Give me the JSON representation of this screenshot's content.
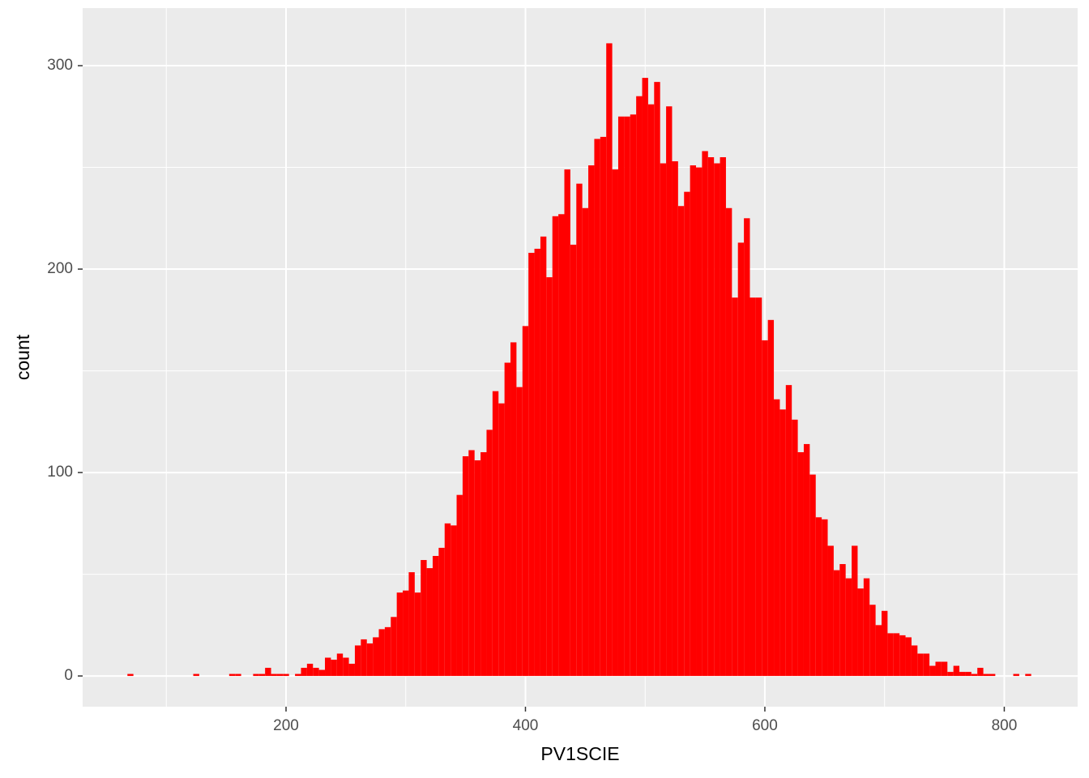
{
  "chart_data": {
    "type": "histogram",
    "x_label": "PV1SCIE",
    "y_label": "count",
    "color": "#ff0000",
    "bins": [
      67.5,
      72.5,
      77.5,
      82.5,
      87.5,
      92.5,
      97.5,
      102.5,
      107.5,
      112.5,
      117.5,
      122.5,
      127.5,
      132.5,
      137.5,
      142.5,
      147.5,
      152.5,
      157.5,
      162.5,
      167.5,
      172.5,
      177.5,
      182.5,
      187.5,
      192.5,
      197.5,
      202.5,
      207.5,
      212.5,
      217.5,
      222.5,
      227.5,
      232.5,
      237.5,
      242.5,
      247.5,
      252.5,
      257.5,
      262.5,
      267.5,
      272.5,
      277.5,
      282.5,
      287.5,
      292.5,
      297.5,
      302.5,
      307.5,
      312.5,
      317.5,
      322.5,
      327.5,
      332.5,
      337.5,
      342.5,
      347.5,
      352.5,
      357.5,
      362.5,
      367.5,
      372.5,
      377.5,
      382.5,
      387.5,
      392.5,
      397.5,
      402.5,
      407.5,
      412.5,
      417.5,
      422.5,
      427.5,
      432.5,
      437.5,
      442.5,
      447.5,
      452.5,
      457.5,
      462.5,
      467.5,
      472.5,
      477.5,
      482.5,
      487.5,
      492.5,
      497.5,
      502.5,
      507.5,
      512.5,
      517.5,
      522.5,
      527.5,
      532.5,
      537.5,
      542.5,
      547.5,
      552.5,
      557.5,
      562.5,
      567.5,
      572.5,
      577.5,
      582.5,
      587.5,
      592.5,
      597.5,
      602.5,
      607.5,
      612.5,
      617.5,
      622.5,
      627.5,
      632.5,
      637.5,
      642.5,
      647.5,
      652.5,
      657.5,
      662.5,
      667.5,
      672.5,
      677.5,
      682.5,
      687.5,
      692.5,
      697.5,
      702.5,
      707.5,
      712.5,
      717.5,
      722.5,
      727.5,
      732.5,
      737.5,
      742.5,
      747.5,
      752.5,
      757.5,
      762.5,
      767.5,
      772.5,
      777.5,
      782.5,
      787.5,
      792.5,
      797.5,
      802.5,
      807.5,
      812.5,
      817.5,
      822.5
    ],
    "values": [
      1,
      0,
      0,
      0,
      0,
      0,
      0,
      0,
      0,
      0,
      0,
      1,
      0,
      0,
      0,
      0,
      0,
      1,
      1,
      0,
      0,
      1,
      1,
      4,
      1,
      1,
      1,
      0,
      1,
      4,
      6,
      4,
      3,
      9,
      8,
      11,
      9,
      6,
      15,
      18,
      16,
      19,
      23,
      24,
      29,
      41,
      42,
      51,
      41,
      57,
      53,
      59,
      63,
      75,
      74,
      89,
      108,
      111,
      106,
      110,
      121,
      140,
      134,
      154,
      164,
      142,
      172,
      208,
      210,
      216,
      196,
      226,
      227,
      249,
      212,
      242,
      230,
      251,
      264,
      265,
      311,
      249,
      275,
      275,
      276,
      285,
      294,
      281,
      292,
      252,
      280,
      253,
      231,
      238,
      251,
      250,
      258,
      255,
      252,
      255,
      230,
      186,
      213,
      225,
      186,
      186,
      165,
      175,
      136,
      131,
      143,
      126,
      110,
      114,
      99,
      78,
      77,
      64,
      52,
      55,
      48,
      64,
      43,
      48,
      35,
      25,
      32,
      21,
      21,
      20,
      19,
      15,
      11,
      11,
      5,
      7,
      7,
      2,
      5,
      2,
      2,
      1,
      4,
      1,
      1,
      0,
      0,
      0,
      1,
      0,
      1
    ],
    "xlim": [
      30.1,
      861.3
    ],
    "ylim": [
      -15.1,
      328.3
    ],
    "xticks": [
      200,
      400,
      600,
      800
    ],
    "yticks": [
      0,
      100,
      200,
      300
    ],
    "x_minor_grid": [
      100,
      300,
      500,
      700
    ],
    "y_minor_grid": [
      50,
      150,
      250
    ],
    "grid": true
  }
}
